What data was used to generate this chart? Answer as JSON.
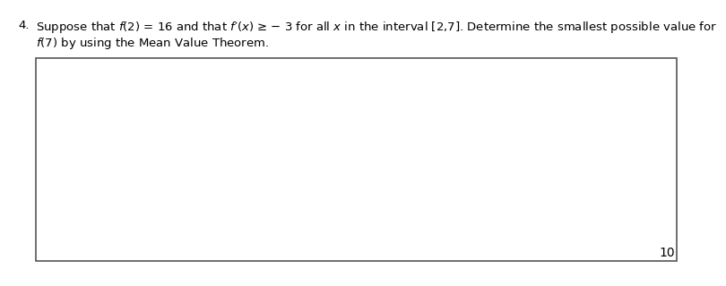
{
  "question_number": "4.",
  "line1": "Suppose that $f$(2) = 16 and that $f$′($x$) ≥ − 3 for all $x$ in the interval [2,7]. Determine the smallest possible value for",
  "line2": "$f$(7) by using the Mean Value Theorem.",
  "points": "10",
  "text_color": "#000000",
  "box_edge_color": "#555555",
  "background_color": "#ffffff",
  "points_color": "#000000",
  "font_size_question": 9.5,
  "font_size_points": 10
}
